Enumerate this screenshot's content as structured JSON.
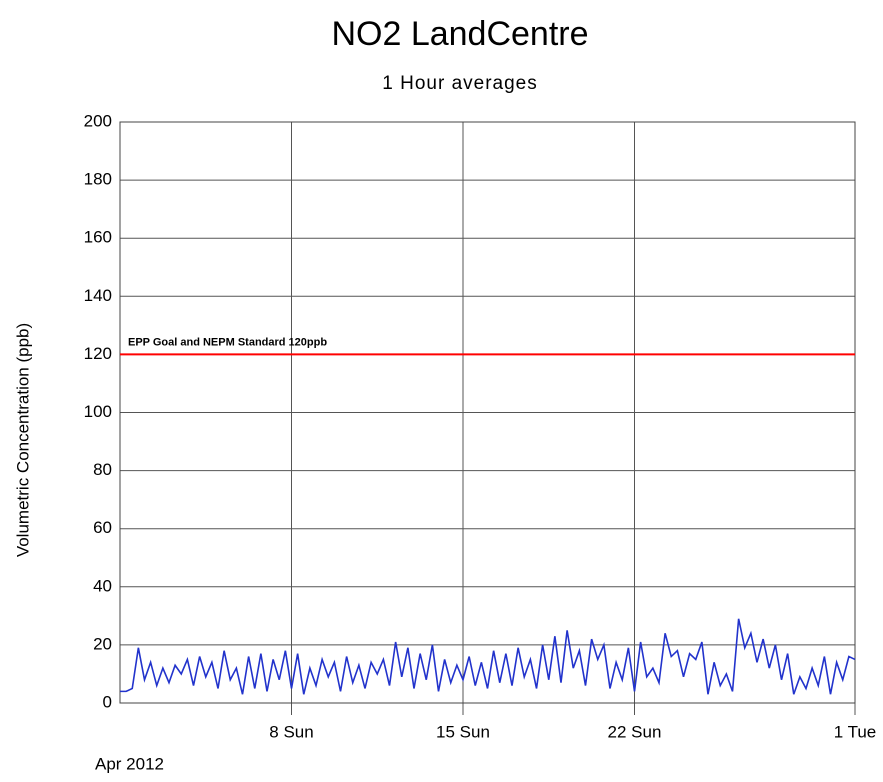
{
  "chart_data": {
    "type": "line",
    "title": "NO2 LandCentre",
    "subtitle": "1 Hour averages",
    "y_label": "Volumetric Concentration (ppb)",
    "x_period_label": "Apr 2012",
    "xlim": [
      1,
      31
    ],
    "xticks": [
      {
        "value": 8,
        "label": "8 Sun"
      },
      {
        "value": 15,
        "label": "15 Sun"
      },
      {
        "value": 22,
        "label": "22 Sun"
      },
      {
        "value": 31,
        "label": "1 Tue"
      }
    ],
    "ylim": [
      0,
      200
    ],
    "yticks": [
      0,
      20,
      40,
      60,
      80,
      100,
      120,
      140,
      160,
      180,
      200
    ],
    "grid": true,
    "reference_line": {
      "value": 120,
      "label": "EPP Goal and NEPM Standard 120ppb",
      "color": "#ff0000"
    },
    "x": [
      1,
      1.25,
      1.5,
      1.75,
      2,
      2.25,
      2.5,
      2.75,
      3,
      3.25,
      3.5,
      3.75,
      4,
      4.25,
      4.5,
      4.75,
      5,
      5.25,
      5.5,
      5.75,
      6,
      6.25,
      6.5,
      6.75,
      7,
      7.25,
      7.5,
      7.75,
      8,
      8.25,
      8.5,
      8.75,
      9,
      9.25,
      9.5,
      9.75,
      10,
      10.25,
      10.5,
      10.75,
      11,
      11.25,
      11.5,
      11.75,
      12,
      12.25,
      12.5,
      12.75,
      13,
      13.25,
      13.5,
      13.75,
      14,
      14.25,
      14.5,
      14.75,
      15,
      15.25,
      15.5,
      15.75,
      16,
      16.25,
      16.5,
      16.75,
      17,
      17.25,
      17.5,
      17.75,
      18,
      18.25,
      18.5,
      18.75,
      19,
      19.25,
      19.5,
      19.75,
      20,
      20.25,
      20.5,
      20.75,
      21,
      21.25,
      21.5,
      21.75,
      22,
      22.25,
      22.5,
      22.75,
      23,
      23.25,
      23.5,
      23.75,
      24,
      24.25,
      24.5,
      24.75,
      25,
      25.25,
      25.5,
      25.75,
      26,
      26.25,
      26.5,
      26.75,
      27,
      27.25,
      27.5,
      27.75,
      28,
      28.25,
      28.5,
      28.75,
      29,
      29.25,
      29.5,
      29.75,
      30,
      30.25,
      30.5,
      30.75,
      31
    ],
    "series": [
      {
        "color": "#2233cc",
        "values": [
          4,
          4,
          5,
          19,
          8,
          14,
          6,
          12,
          7,
          13,
          10,
          15,
          6,
          16,
          9,
          14,
          5,
          18,
          8,
          12,
          3,
          16,
          5,
          17,
          4,
          15,
          8,
          18,
          5,
          17,
          3,
          12,
          6,
          15,
          9,
          14,
          4,
          16,
          7,
          13,
          5,
          14,
          10,
          15,
          6,
          21,
          9,
          19,
          5,
          17,
          8,
          20,
          4,
          15,
          7,
          13,
          8,
          16,
          6,
          14,
          5,
          18,
          7,
          17,
          6,
          19,
          9,
          15,
          5,
          20,
          8,
          23,
          7,
          25,
          12,
          18,
          6,
          22,
          15,
          20,
          5,
          14,
          8,
          19,
          4,
          21,
          9,
          12,
          7,
          24,
          16,
          18,
          9,
          17,
          15,
          21,
          3,
          14,
          6,
          10,
          4,
          29,
          19,
          24,
          14,
          22,
          12,
          20,
          8,
          17,
          3,
          9,
          5,
          12,
          6,
          16,
          3,
          14,
          8,
          16,
          15
        ]
      }
    ]
  }
}
